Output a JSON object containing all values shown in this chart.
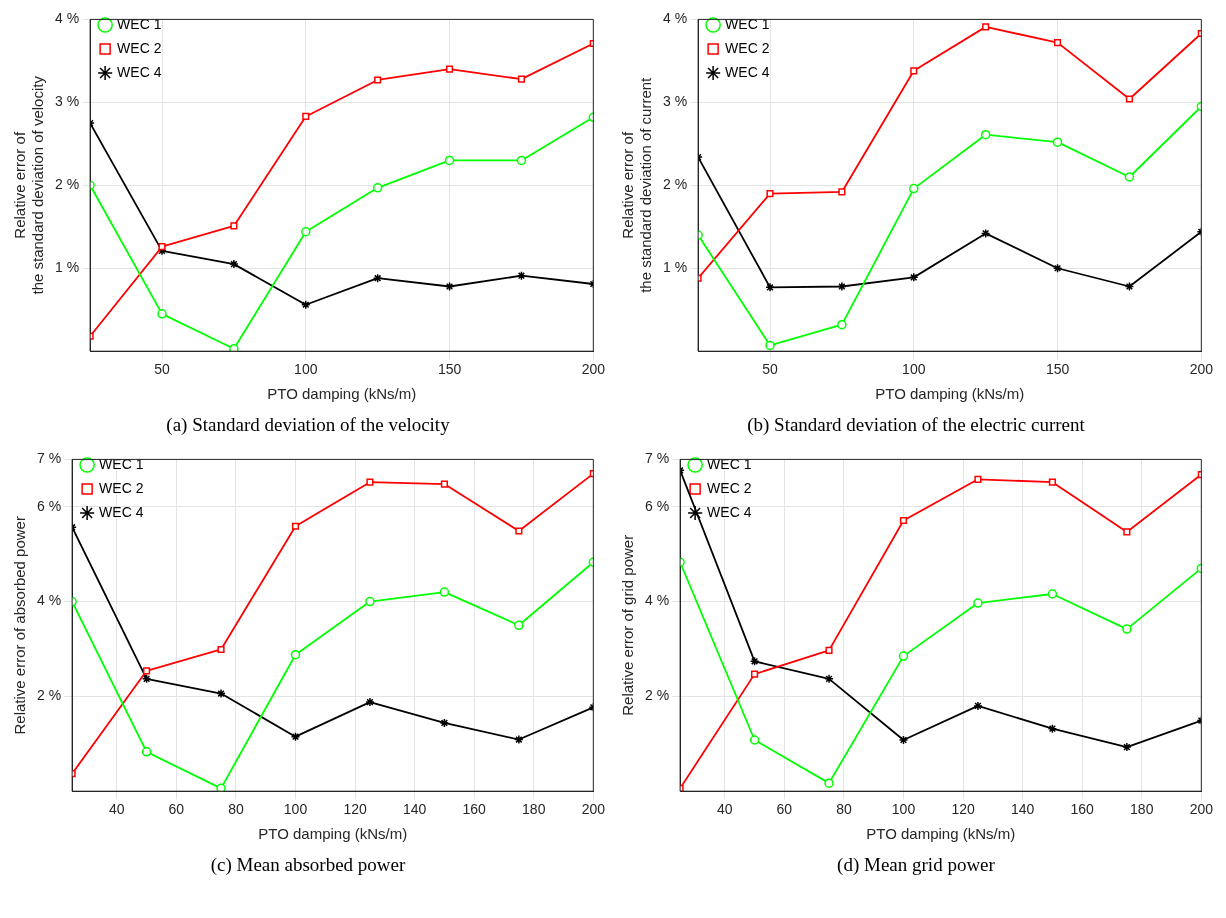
{
  "chart_data": [
    {
      "type": "line",
      "ylabel": "Relative error of\nthe standard deviation of velocity",
      "xlabel": "PTO damping (kNs/m)",
      "annotations": [
        "(a) Standard deviation of the velocity"
      ],
      "x": [
        25,
        50,
        75,
        100,
        125,
        150,
        175,
        200
      ],
      "xlim": [
        25,
        200
      ],
      "xticks": [
        50,
        100,
        150,
        200
      ],
      "ylim": [
        0,
        4
      ],
      "yticks": [
        {
          "value": 1,
          "label": "1 %"
        },
        {
          "value": 2,
          "label": "2 %"
        },
        {
          "value": 3,
          "label": "3 %"
        },
        {
          "value": 4,
          "label": "4 %"
        }
      ],
      "grid": true,
      "legend": "top left",
      "series": [
        {
          "name": "WEC 1",
          "color": "#00ff00",
          "marker": "circle",
          "values": [
            2.0,
            0.45,
            0.03,
            1.44,
            1.97,
            2.3,
            2.3,
            2.82
          ]
        },
        {
          "name": "WEC 2",
          "color": "#ff0000",
          "marker": "square",
          "values": [
            0.18,
            1.26,
            1.51,
            2.83,
            3.27,
            3.4,
            3.28,
            3.71
          ]
        },
        {
          "name": "WEC 4",
          "color": "#000000",
          "marker": "cross",
          "values": [
            2.75,
            1.21,
            1.05,
            0.56,
            0.88,
            0.78,
            0.91,
            0.81
          ]
        }
      ]
    },
    {
      "type": "line",
      "ylabel": "Relative error of\nthe standard deviation of current",
      "xlabel": "PTO damping (kNs/m)",
      "annotations": [
        "(b) Standard deviation of the electric current"
      ],
      "x": [
        25,
        50,
        75,
        100,
        125,
        150,
        175,
        200
      ],
      "xlim": [
        25,
        200
      ],
      "xticks": [
        50,
        100,
        150,
        200
      ],
      "ylim": [
        0,
        4
      ],
      "yticks": [
        {
          "value": 1,
          "label": "1 %"
        },
        {
          "value": 2,
          "label": "2 %"
        },
        {
          "value": 3,
          "label": "3 %"
        },
        {
          "value": 4,
          "label": "4 %"
        }
      ],
      "grid": true,
      "legend": "top left",
      "series": [
        {
          "name": "WEC 1",
          "color": "#00ff00",
          "marker": "circle",
          "values": [
            1.4,
            0.07,
            0.32,
            1.96,
            2.61,
            2.52,
            2.1,
            2.95
          ]
        },
        {
          "name": "WEC 2",
          "color": "#ff0000",
          "marker": "square",
          "values": [
            0.88,
            1.9,
            1.92,
            3.38,
            3.91,
            3.72,
            3.04,
            3.83
          ]
        },
        {
          "name": "WEC 4",
          "color": "#000000",
          "marker": "cross",
          "values": [
            2.34,
            0.77,
            0.78,
            0.89,
            1.42,
            1.0,
            0.78,
            1.44
          ]
        }
      ]
    },
    {
      "type": "line",
      "ylabel": "Relative error of absorbed power",
      "xlabel": "PTO damping (kNs/m)",
      "annotations": [
        "(c) Mean absorbed power"
      ],
      "x": [
        25,
        50,
        75,
        100,
        125,
        150,
        175,
        200
      ],
      "xlim": [
        25,
        200
      ],
      "xticks": [
        40,
        60,
        80,
        100,
        120,
        140,
        160,
        180,
        200
      ],
      "ylim": [
        0,
        7
      ],
      "yticks": [
        {
          "value": 2,
          "label": "2 %"
        },
        {
          "value": 4,
          "label": "4 %"
        },
        {
          "value": 6,
          "label": "6 %"
        },
        {
          "value": 7,
          "label": "7 %"
        }
      ],
      "grid": true,
      "legend": "top left",
      "series": [
        {
          "name": "WEC 1",
          "color": "#00ff00",
          "marker": "circle",
          "values": [
            4.0,
            0.83,
            0.06,
            2.88,
            4.0,
            4.2,
            3.5,
            4.83
          ]
        },
        {
          "name": "WEC 2",
          "color": "#ff0000",
          "marker": "square",
          "values": [
            0.37,
            2.54,
            2.99,
            5.59,
            6.52,
            6.48,
            5.49,
            6.7
          ]
        },
        {
          "name": "WEC 4",
          "color": "#000000",
          "marker": "cross",
          "values": [
            5.57,
            2.37,
            2.06,
            1.15,
            1.88,
            1.44,
            1.09,
            1.77
          ]
        }
      ]
    },
    {
      "type": "line",
      "ylabel": "Relative error of grid power",
      "xlabel": "PTO damping (kNs/m)",
      "annotations": [
        "(d) Mean grid power"
      ],
      "x": [
        25,
        50,
        75,
        100,
        125,
        150,
        175,
        200
      ],
      "xlim": [
        25,
        200
      ],
      "xticks": [
        40,
        60,
        80,
        100,
        120,
        140,
        160,
        180,
        200
      ],
      "ylim": [
        0,
        7
      ],
      "yticks": [
        {
          "value": 2,
          "label": "2 %"
        },
        {
          "value": 4,
          "label": "4 %"
        },
        {
          "value": 6,
          "label": "6 %"
        },
        {
          "value": 7,
          "label": "7 %"
        }
      ],
      "grid": true,
      "legend": "top left",
      "series": [
        {
          "name": "WEC 1",
          "color": "#00ff00",
          "marker": "circle",
          "values": [
            4.83,
            1.08,
            0.17,
            2.85,
            3.97,
            4.16,
            3.42,
            4.7
          ]
        },
        {
          "name": "WEC 2",
          "color": "#ff0000",
          "marker": "square",
          "values": [
            0.06,
            2.47,
            2.97,
            5.71,
            6.58,
            6.52,
            5.47,
            6.68
          ]
        },
        {
          "name": "WEC 4",
          "color": "#000000",
          "marker": "cross",
          "values": [
            6.77,
            2.74,
            2.37,
            1.08,
            1.8,
            1.32,
            0.93,
            1.49
          ]
        }
      ]
    }
  ]
}
